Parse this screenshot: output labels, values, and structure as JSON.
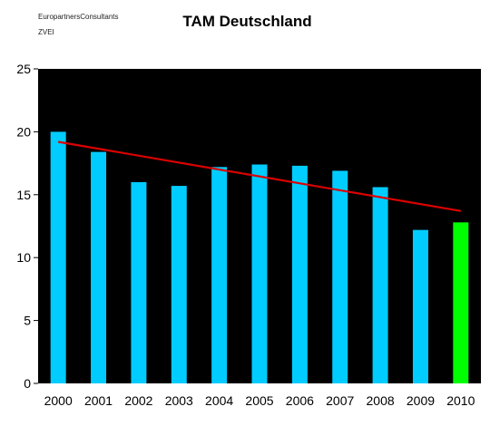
{
  "header": {
    "source_line_1": "EuropartnersConsultants",
    "source_line_2": "ZVEI"
  },
  "chart_data": {
    "type": "bar",
    "title": "TAM Deutschland",
    "xlabel": "",
    "ylabel": "",
    "categories": [
      "2000",
      "2001",
      "2002",
      "2003",
      "2004",
      "2005",
      "2006",
      "2007",
      "2008",
      "2009",
      "2010"
    ],
    "values": [
      20.0,
      18.4,
      16.0,
      15.7,
      17.2,
      17.4,
      17.3,
      16.9,
      15.6,
      12.2,
      12.8
    ],
    "bar_colors": [
      "#00ccff",
      "#00ccff",
      "#00ccff",
      "#00ccff",
      "#00ccff",
      "#00ccff",
      "#00ccff",
      "#00ccff",
      "#00ccff",
      "#00ccff",
      "#00ff00"
    ],
    "trendline": {
      "start": 19.2,
      "end": 13.7,
      "color": "#dd0000"
    },
    "ylim": [
      0,
      25
    ],
    "yticks": [
      0,
      5,
      10,
      15,
      20,
      25
    ],
    "plot_background": "#000000",
    "grid": false,
    "legend": "none"
  }
}
